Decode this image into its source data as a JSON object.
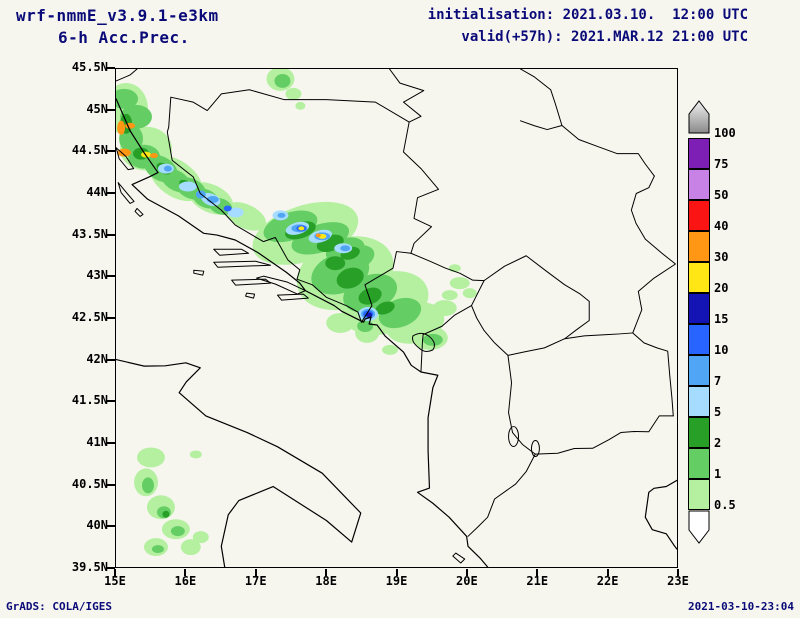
{
  "header": {
    "model_line1": "wrf-nmmE_v3.9.1-e3km",
    "model_line2": "6-h Acc.Prec.",
    "init_line": "initialisation: 2021.03.10.  12:00 UTC",
    "valid_line": "valid(+57h): 2021.MAR.12 21:00 UTC"
  },
  "axes": {
    "lat_ticks": [
      "45.5N",
      "45N",
      "44.5N",
      "44N",
      "43.5N",
      "43N",
      "42.5N",
      "42N",
      "41.5N",
      "41N",
      "40.5N",
      "40N",
      "39.5N"
    ],
    "lon_ticks": [
      "15E",
      "16E",
      "17E",
      "18E",
      "19E",
      "20E",
      "21E",
      "22E",
      "23E"
    ],
    "lon_range": [
      15,
      23
    ],
    "lat_range": [
      39.5,
      45.5
    ]
  },
  "colorbar": {
    "boundary_labels": [
      "100",
      "75",
      "50",
      "40",
      "30",
      "20",
      "15",
      "10",
      "7",
      "5",
      "2",
      "1",
      "0.5"
    ],
    "segment_colors_top_to_bottom": [
      "#7d1eb4",
      "#c882e6",
      "#fa1414",
      "#ff9614",
      "#ffe614",
      "#1414b4",
      "#2864ff",
      "#50a5f5",
      "#a5dcff",
      "#28a028",
      "#64cd64",
      "#b4f0a0"
    ],
    "above_max_style": "gray-gradient-arrow",
    "below_min_style": "white-arrow"
  },
  "palette": {
    "green_light": "#b4f0a0",
    "green_mid": "#64cd64",
    "green_dark": "#28a028",
    "blue_pale": "#a5dcff",
    "blue_mid": "#50a5f5",
    "blue_strong": "#2864ff",
    "blue_navy": "#1414b4",
    "yellow": "#ffe614",
    "orange": "#ff9614",
    "red": "#fa1414"
  },
  "footer": {
    "left": "GrADS: COLA/IGES",
    "right": "2021-03-10-23:04"
  }
}
